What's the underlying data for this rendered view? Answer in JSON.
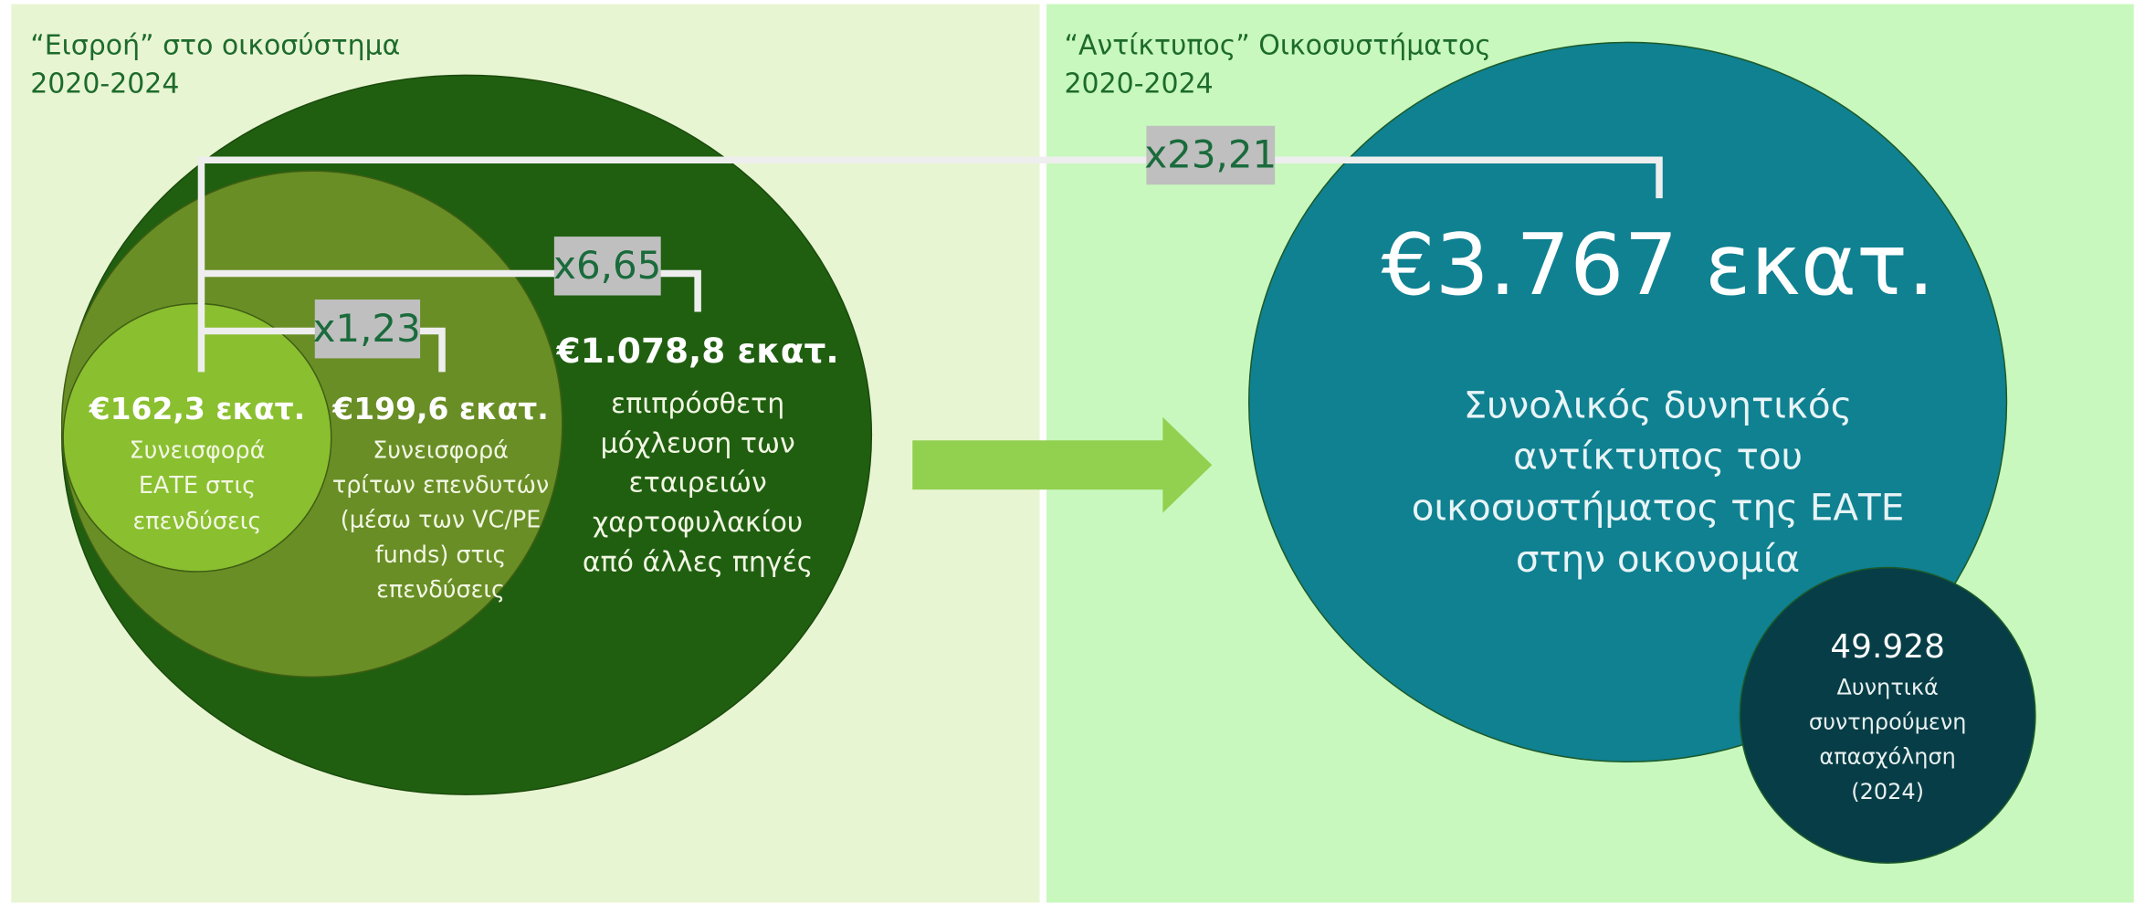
{
  "input_panel": {
    "title": [
      "“Εισροή” στο οικοσύστημα",
      "2020-2024"
    ]
  },
  "impact_panel": {
    "title": [
      "“Αντίκτυπος” Οικοσυστήματος",
      "2020-2024"
    ]
  },
  "circles": [
    {
      "amount": "€162,3 εκατ.",
      "description": [
        "Συνεισφορά",
        "ΕΑΤΕ στις",
        "επενδύσεις"
      ]
    },
    {
      "amount": "€199,6 εκατ.",
      "description": [
        "Συνεισφορά",
        "τρίτων επενδυτών",
        "(μέσω των VC/PE",
        "funds) στις",
        "επενδύσεις"
      ]
    },
    {
      "amount": "€1.078,8 εκατ.",
      "description": [
        "επιπρόσθετη",
        "μόχλευση των",
        "εταιρειών",
        "χαρτοφυλακίου",
        "από άλλες πηγές"
      ]
    }
  ],
  "multipliers": [
    "x23,21",
    "x6,65",
    "x1,23"
  ],
  "impact": {
    "amount": "€3.767 εκατ.",
    "description": [
      "Συνολικός δυνητικός",
      "αντίκτυπος του",
      "οικοσυστήματος της ΕΑΤΕ",
      "στην οικονομία"
    ]
  },
  "employment": {
    "value": "49.928",
    "description": [
      "Δυνητικά",
      "συντηρούμενη",
      "απασχόληση",
      "(2024)"
    ]
  }
}
